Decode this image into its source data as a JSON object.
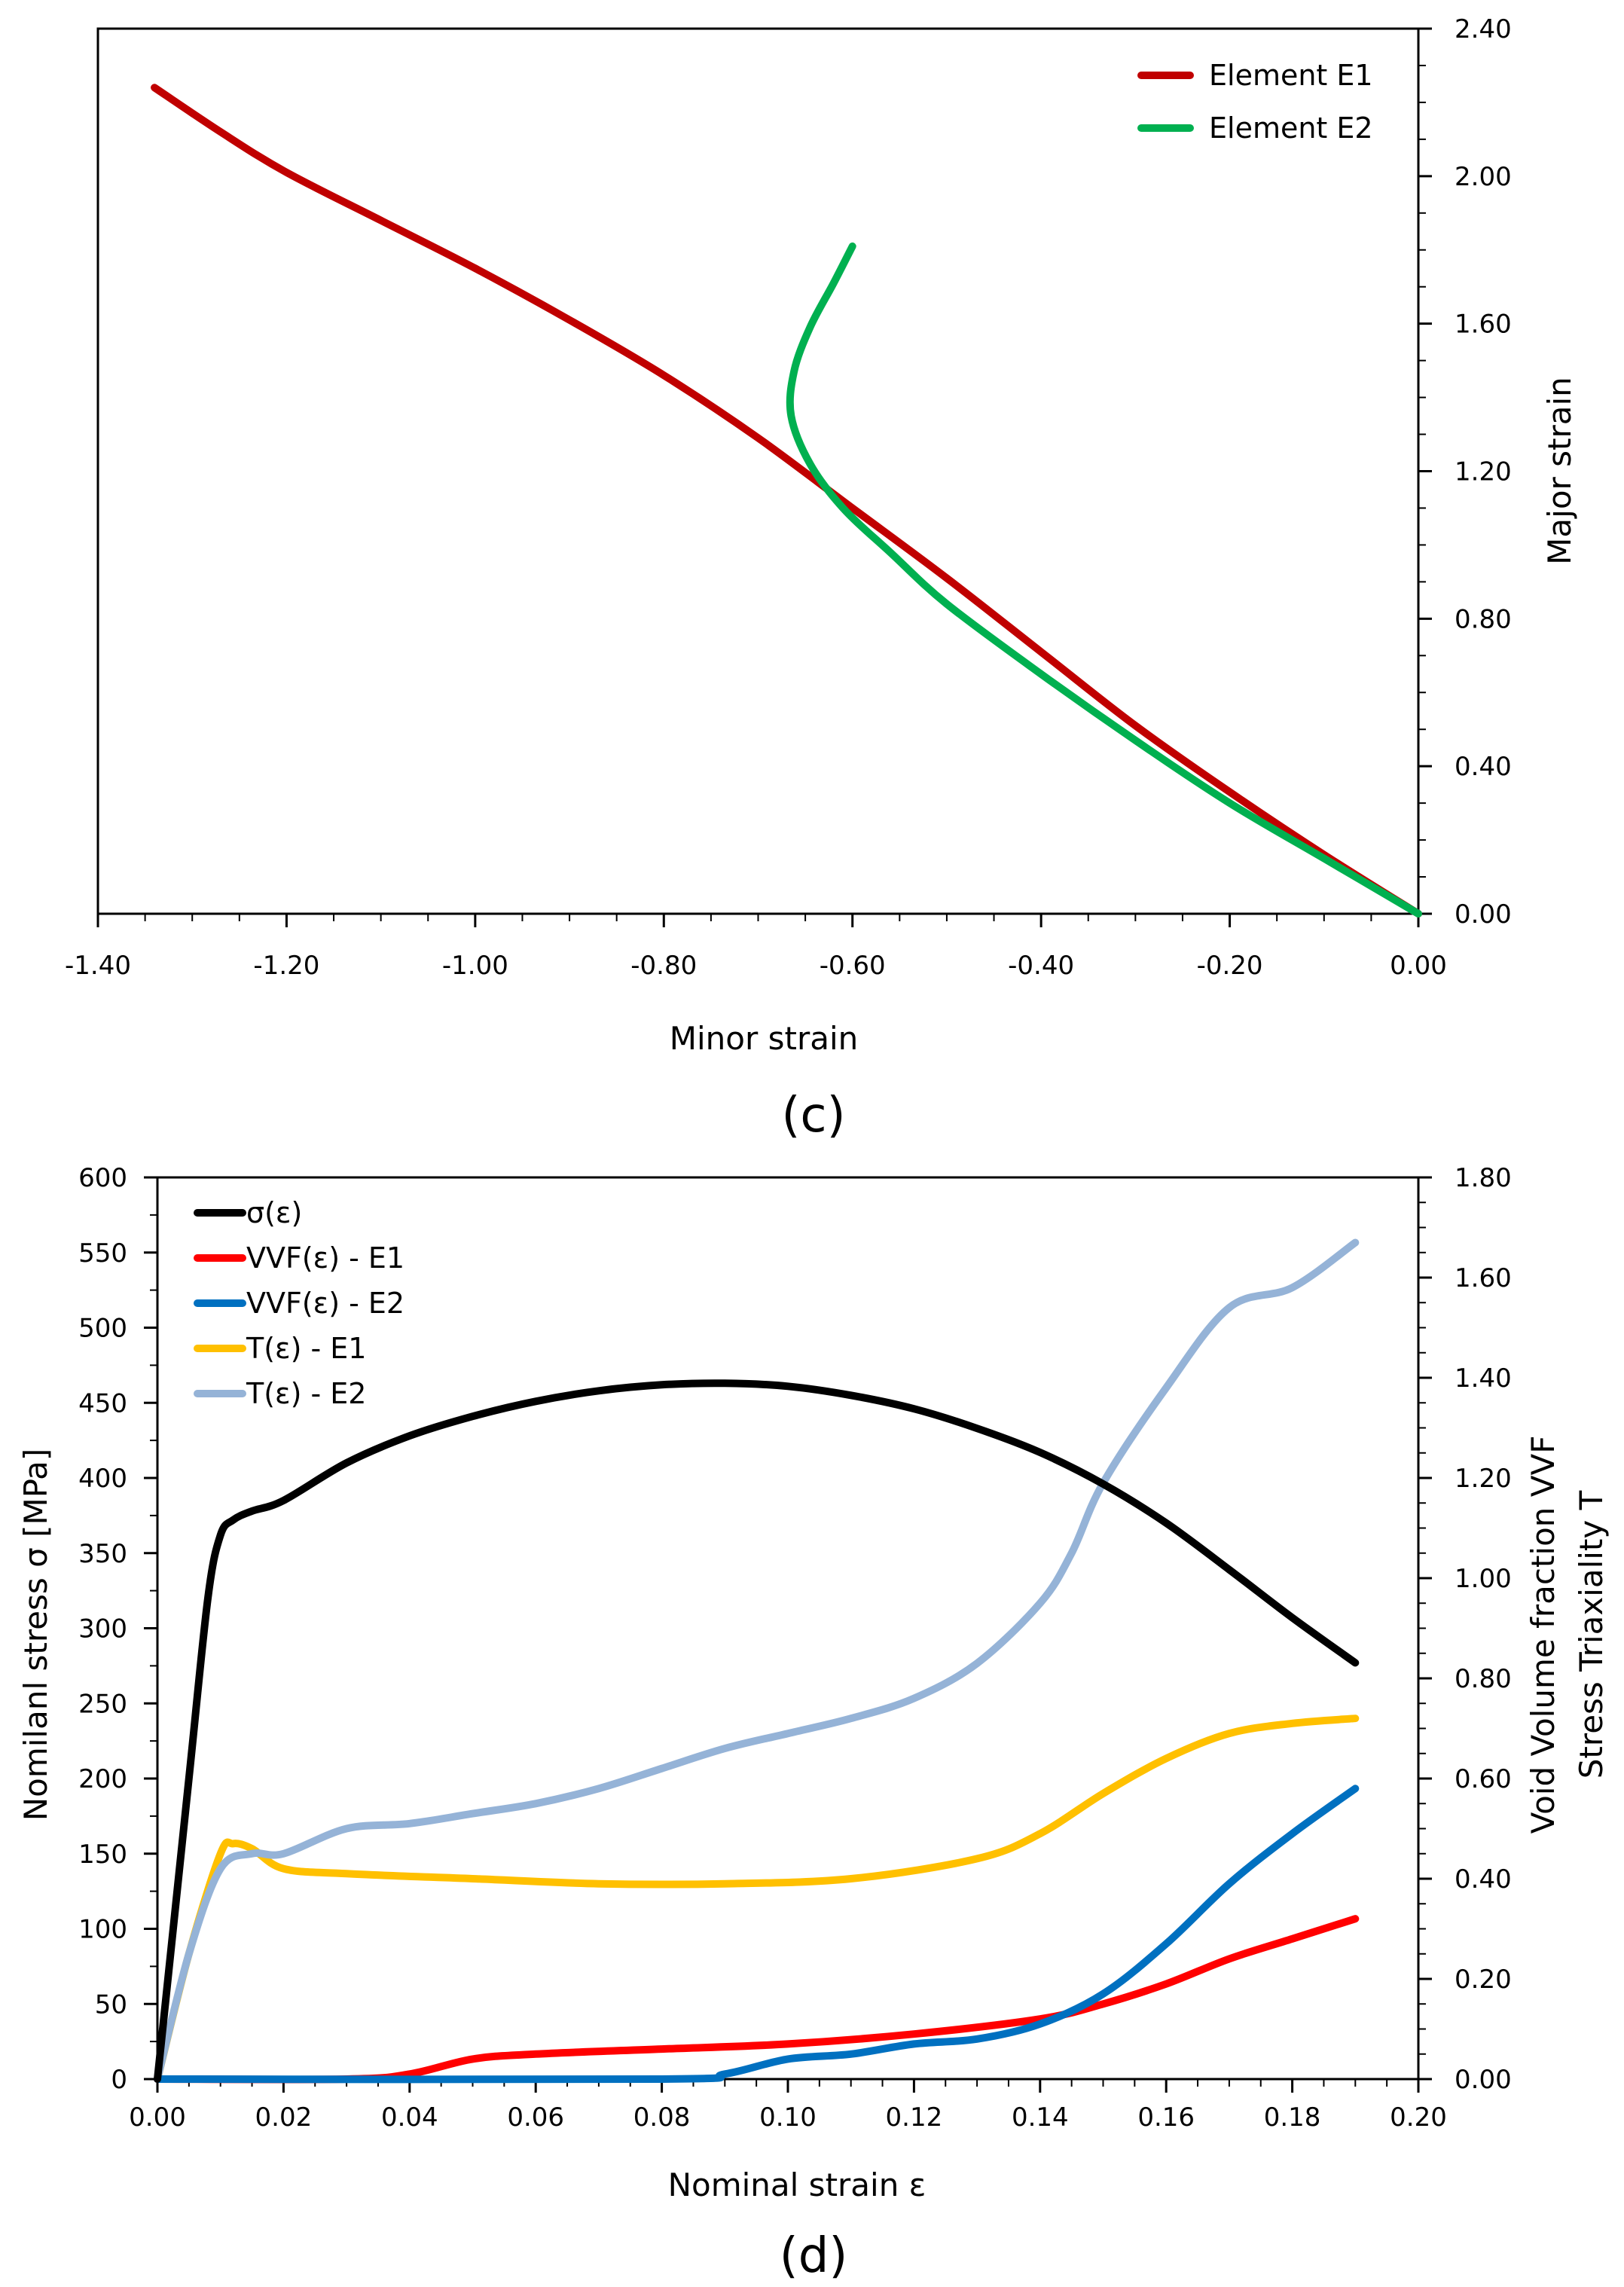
{
  "chart_data": [
    {
      "type": "line",
      "panel_label": "(c)",
      "xlabel": "Minor strain",
      "ylabel": "Major strain",
      "xlim": [
        -1.4,
        0.0
      ],
      "ylim": [
        0.0,
        2.4
      ],
      "x_ticks": [
        "-1.40",
        "-1.20",
        "-1.00",
        "-0.80",
        "-0.60",
        "-0.40",
        "-0.20",
        "0.00"
      ],
      "y_ticks": [
        "0.00",
        "0.40",
        "0.80",
        "1.20",
        "1.60",
        "2.00",
        "2.40"
      ],
      "y_axis_side": "right",
      "grid": false,
      "legend_position": "top-right",
      "series": [
        {
          "name": "Element E1",
          "color": "#c00000",
          "points": [
            [
              0.0,
              0.0
            ],
            [
              -0.1,
              0.16
            ],
            [
              -0.2,
              0.33
            ],
            [
              -0.3,
              0.51
            ],
            [
              -0.4,
              0.71
            ],
            [
              -0.5,
              0.91
            ],
            [
              -0.6,
              1.1
            ],
            [
              -0.7,
              1.29
            ],
            [
              -0.8,
              1.46
            ],
            [
              -0.9,
              1.61
            ],
            [
              -1.0,
              1.75
            ],
            [
              -1.1,
              1.88
            ],
            [
              -1.2,
              2.01
            ],
            [
              -1.27,
              2.12
            ],
            [
              -1.34,
              2.24
            ]
          ]
        },
        {
          "name": "Element E2",
          "color": "#00b050",
          "points": [
            [
              0.0,
              0.0
            ],
            [
              -0.1,
              0.15
            ],
            [
              -0.2,
              0.3
            ],
            [
              -0.3,
              0.47
            ],
            [
              -0.4,
              0.65
            ],
            [
              -0.5,
              0.84
            ],
            [
              -0.56,
              0.98
            ],
            [
              -0.61,
              1.1
            ],
            [
              -0.645,
              1.22
            ],
            [
              -0.665,
              1.35
            ],
            [
              -0.662,
              1.47
            ],
            [
              -0.645,
              1.59
            ],
            [
              -0.62,
              1.71
            ],
            [
              -0.6,
              1.81
            ]
          ]
        }
      ]
    },
    {
      "type": "line",
      "panel_label": "(d)",
      "xlabel": "Nominal strain  ε",
      "ylabel_left": "Nomilanl stress  σ [MPa]",
      "ylabel_right_1": "Void Volume fraction  VVF",
      "ylabel_right_2": "Stress Triaxiality  T",
      "xlim": [
        0.0,
        0.2
      ],
      "ylim_left": [
        0,
        600
      ],
      "ylim_right": [
        0.0,
        1.8
      ],
      "x_ticks": [
        "0.00",
        "0.02",
        "0.04",
        "0.06",
        "0.08",
        "0.10",
        "0.12",
        "0.14",
        "0.16",
        "0.18",
        "0.20"
      ],
      "y_ticks_left": [
        "0",
        "50",
        "100",
        "150",
        "200",
        "250",
        "300",
        "350",
        "400",
        "450",
        "500",
        "550",
        "600"
      ],
      "y_ticks_right": [
        "0.00",
        "0.20",
        "0.40",
        "0.60",
        "0.80",
        "1.00",
        "1.20",
        "1.40",
        "1.60",
        "1.80"
      ],
      "grid": false,
      "legend_position": "top-left",
      "series": [
        {
          "name": "σ(ε)",
          "axis": "left",
          "color": "#000000",
          "points": [
            [
              0.0,
              0
            ],
            [
              0.005,
              200
            ],
            [
              0.008,
              320
            ],
            [
              0.01,
              362
            ],
            [
              0.012,
              372
            ],
            [
              0.015,
              378
            ],
            [
              0.02,
              385
            ],
            [
              0.03,
              410
            ],
            [
              0.04,
              428
            ],
            [
              0.05,
              441
            ],
            [
              0.06,
              451
            ],
            [
              0.07,
              458
            ],
            [
              0.08,
              462
            ],
            [
              0.09,
              463
            ],
            [
              0.1,
              461
            ],
            [
              0.11,
              455
            ],
            [
              0.12,
              446
            ],
            [
              0.13,
              433
            ],
            [
              0.14,
              417
            ],
            [
              0.15,
              396
            ],
            [
              0.16,
              370
            ],
            [
              0.17,
              339
            ],
            [
              0.18,
              307
            ],
            [
              0.19,
              277
            ]
          ]
        },
        {
          "name": "VVF(ε) - E1",
          "axis": "right",
          "color": "#ff0000",
          "points": [
            [
              0.0,
              0.0
            ],
            [
              0.03,
              0.0
            ],
            [
              0.04,
              0.01
            ],
            [
              0.05,
              0.04
            ],
            [
              0.06,
              0.05
            ],
            [
              0.08,
              0.06
            ],
            [
              0.1,
              0.07
            ],
            [
              0.12,
              0.09
            ],
            [
              0.14,
              0.12
            ],
            [
              0.15,
              0.15
            ],
            [
              0.16,
              0.19
            ],
            [
              0.17,
              0.24
            ],
            [
              0.18,
              0.28
            ],
            [
              0.19,
              0.32
            ]
          ]
        },
        {
          "name": "VVF(ε) - E2",
          "axis": "right",
          "color": "#0070c0",
          "points": [
            [
              0.0,
              0.0
            ],
            [
              0.08,
              0.0
            ],
            [
              0.09,
              0.01
            ],
            [
              0.1,
              0.04
            ],
            [
              0.11,
              0.05
            ],
            [
              0.12,
              0.07
            ],
            [
              0.13,
              0.08
            ],
            [
              0.14,
              0.11
            ],
            [
              0.15,
              0.17
            ],
            [
              0.16,
              0.27
            ],
            [
              0.17,
              0.39
            ],
            [
              0.18,
              0.49
            ],
            [
              0.19,
              0.58
            ]
          ]
        },
        {
          "name": "T(ε) - E1",
          "axis": "right",
          "color": "#ffc000",
          "points": [
            [
              0.0,
              0.0
            ],
            [
              0.005,
              0.25
            ],
            [
              0.01,
              0.45
            ],
            [
              0.012,
              0.47
            ],
            [
              0.015,
              0.46
            ],
            [
              0.02,
              0.42
            ],
            [
              0.03,
              0.41
            ],
            [
              0.05,
              0.4
            ],
            [
              0.07,
              0.39
            ],
            [
              0.09,
              0.39
            ],
            [
              0.11,
              0.4
            ],
            [
              0.13,
              0.44
            ],
            [
              0.14,
              0.49
            ],
            [
              0.15,
              0.57
            ],
            [
              0.16,
              0.64
            ],
            [
              0.17,
              0.69
            ],
            [
              0.18,
              0.71
            ],
            [
              0.19,
              0.72
            ]
          ]
        },
        {
          "name": "T(ε) - E2",
          "axis": "right",
          "color": "#95b3d7",
          "points": [
            [
              0.0,
              0.0
            ],
            [
              0.005,
              0.25
            ],
            [
              0.01,
              0.42
            ],
            [
              0.015,
              0.45
            ],
            [
              0.02,
              0.45
            ],
            [
              0.03,
              0.5
            ],
            [
              0.04,
              0.51
            ],
            [
              0.05,
              0.53
            ],
            [
              0.06,
              0.55
            ],
            [
              0.07,
              0.58
            ],
            [
              0.08,
              0.62
            ],
            [
              0.09,
              0.66
            ],
            [
              0.1,
              0.69
            ],
            [
              0.11,
              0.72
            ],
            [
              0.12,
              0.76
            ],
            [
              0.13,
              0.83
            ],
            [
              0.14,
              0.95
            ],
            [
              0.145,
              1.05
            ],
            [
              0.15,
              1.19
            ],
            [
              0.16,
              1.38
            ],
            [
              0.17,
              1.54
            ],
            [
              0.18,
              1.58
            ],
            [
              0.19,
              1.67
            ]
          ]
        }
      ]
    }
  ]
}
